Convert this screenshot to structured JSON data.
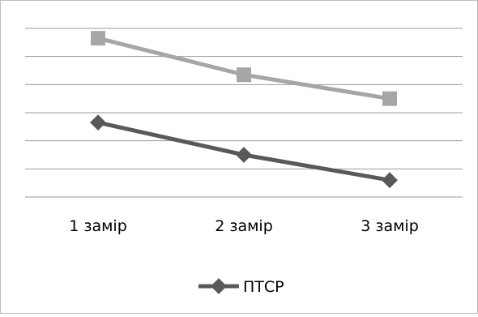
{
  "chart_data": {
    "type": "line",
    "categories": [
      "1 замір",
      "2 замір",
      "3 замір"
    ],
    "series": [
      {
        "name": "ПТСР",
        "values": [
          2.65,
          1.5,
          0.6
        ],
        "color": "#595959",
        "marker": "diamond"
      },
      {
        "name": "",
        "values": [
          5.65,
          4.35,
          3.5
        ],
        "color": "#a6a6a6",
        "marker": "square"
      }
    ],
    "ylim": [
      0,
      6
    ],
    "gridlines": true,
    "legend_position": "bottom"
  }
}
